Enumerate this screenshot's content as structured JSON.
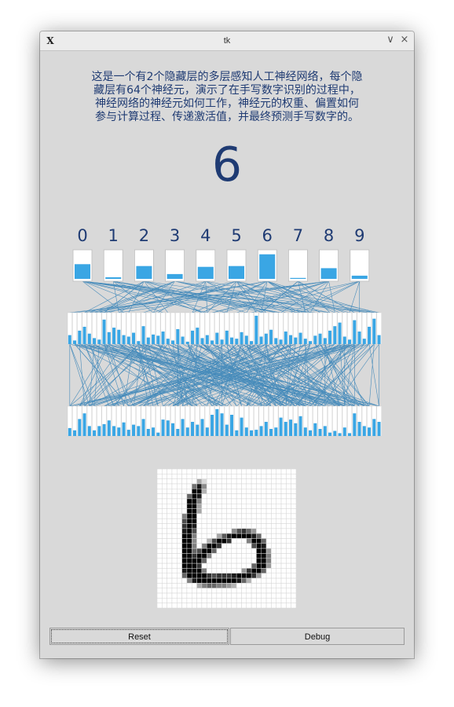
{
  "window": {
    "title": "tk",
    "app_icon": "X",
    "minimize_glyph": "∨",
    "close_glyph": "×"
  },
  "description": "这是一个有2个隐藏层的多层感知人工神经网络，每个隐\n藏层有64个神经元，演示了在手写数字识别的过程中，\n神经网络的神经元如何工作，神经元的权重、偏置如何\n参与计算过程、传递激活值，并最终预测手写数字的。",
  "prediction": "6",
  "output_layer": {
    "labels": [
      "0",
      "1",
      "2",
      "3",
      "4",
      "5",
      "6",
      "7",
      "8",
      "9"
    ],
    "activations": [
      0.55,
      0.06,
      0.48,
      0.18,
      0.45,
      0.48,
      0.92,
      0.03,
      0.4,
      0.12
    ]
  },
  "hidden_layer_2": {
    "activations": [
      0.3,
      0.12,
      0.45,
      0.58,
      0.35,
      0.2,
      0.15,
      0.82,
      0.4,
      0.55,
      0.48,
      0.3,
      0.25,
      0.38,
      0.1,
      0.6,
      0.22,
      0.32,
      0.28,
      0.42,
      0.18,
      0.12,
      0.5,
      0.25,
      0.08,
      0.45,
      0.55,
      0.2,
      0.3,
      0.12,
      0.38,
      0.15,
      0.45,
      0.22,
      0.18,
      0.4,
      0.28,
      0.1,
      0.95,
      0.25,
      0.35,
      0.48,
      0.2,
      0.15,
      0.42,
      0.3,
      0.22,
      0.38,
      0.18,
      0.1,
      0.28,
      0.35,
      0.2,
      0.45,
      0.6,
      0.72,
      0.25,
      0.15,
      0.8,
      0.42,
      0.18,
      0.58,
      0.85,
      0.3
    ]
  },
  "hidden_layer_1": {
    "activations": [
      0.28,
      0.2,
      0.6,
      0.8,
      0.35,
      0.2,
      0.35,
      0.42,
      0.55,
      0.35,
      0.3,
      0.48,
      0.22,
      0.4,
      0.35,
      0.6,
      0.25,
      0.3,
      0.12,
      0.58,
      0.55,
      0.45,
      0.25,
      0.6,
      0.3,
      0.5,
      0.4,
      0.6,
      0.3,
      0.75,
      0.95,
      0.8,
      0.4,
      0.75,
      0.2,
      0.65,
      0.3,
      0.2,
      0.22,
      0.35,
      0.5,
      0.25,
      0.3,
      0.65,
      0.5,
      0.58,
      0.45,
      0.7,
      0.3,
      0.2,
      0.45,
      0.25,
      0.35,
      0.12,
      0.18,
      0.1,
      0.3,
      0.1,
      0.8,
      0.5,
      0.35,
      0.3,
      0.6,
      0.5
    ]
  },
  "input_image": {
    "size": 28,
    "strokes": [
      {
        "r": 2,
        "c": 8,
        "v": 0.35
      },
      {
        "r": 2,
        "c": 9,
        "v": 0.15
      },
      {
        "r": 3,
        "c": 7,
        "v": 0.55
      },
      {
        "r": 3,
        "c": 8,
        "v": 0.9
      },
      {
        "r": 3,
        "c": 9,
        "v": 0.45
      },
      {
        "r": 4,
        "c": 7,
        "v": 1
      },
      {
        "r": 4,
        "c": 8,
        "v": 1
      },
      {
        "r": 4,
        "c": 9,
        "v": 0.3
      },
      {
        "r": 5,
        "c": 6,
        "v": 0.6
      },
      {
        "r": 5,
        "c": 7,
        "v": 1
      },
      {
        "r": 5,
        "c": 8,
        "v": 0.9
      },
      {
        "r": 6,
        "c": 6,
        "v": 1
      },
      {
        "r": 6,
        "c": 7,
        "v": 1
      },
      {
        "r": 6,
        "c": 8,
        "v": 0.5
      },
      {
        "r": 7,
        "c": 6,
        "v": 1
      },
      {
        "r": 7,
        "c": 7,
        "v": 1
      },
      {
        "r": 7,
        "c": 8,
        "v": 0.35
      },
      {
        "r": 8,
        "c": 6,
        "v": 1
      },
      {
        "r": 8,
        "c": 7,
        "v": 1
      },
      {
        "r": 8,
        "c": 8,
        "v": 0.35
      },
      {
        "r": 9,
        "c": 5,
        "v": 0.5
      },
      {
        "r": 9,
        "c": 6,
        "v": 1
      },
      {
        "r": 9,
        "c": 7,
        "v": 1
      },
      {
        "r": 10,
        "c": 5,
        "v": 0.7
      },
      {
        "r": 10,
        "c": 6,
        "v": 1
      },
      {
        "r": 10,
        "c": 7,
        "v": 1
      },
      {
        "r": 11,
        "c": 5,
        "v": 0.8
      },
      {
        "r": 11,
        "c": 6,
        "v": 1
      },
      {
        "r": 11,
        "c": 7,
        "v": 0.9
      },
      {
        "r": 12,
        "c": 5,
        "v": 0.9
      },
      {
        "r": 12,
        "c": 6,
        "v": 1
      },
      {
        "r": 12,
        "c": 7,
        "v": 0.7
      },
      {
        "r": 13,
        "c": 5,
        "v": 1
      },
      {
        "r": 13,
        "c": 6,
        "v": 1
      },
      {
        "r": 13,
        "c": 7,
        "v": 0.5
      },
      {
        "r": 12,
        "c": 15,
        "v": 0.45
      },
      {
        "r": 12,
        "c": 16,
        "v": 0.7
      },
      {
        "r": 12,
        "c": 17,
        "v": 0.8
      },
      {
        "r": 12,
        "c": 18,
        "v": 0.6
      },
      {
        "r": 12,
        "c": 19,
        "v": 0.4
      },
      {
        "r": 13,
        "c": 12,
        "v": 0.35
      },
      {
        "r": 13,
        "c": 13,
        "v": 0.65
      },
      {
        "r": 13,
        "c": 14,
        "v": 0.9
      },
      {
        "r": 13,
        "c": 15,
        "v": 1
      },
      {
        "r": 13,
        "c": 16,
        "v": 1
      },
      {
        "r": 13,
        "c": 17,
        "v": 1
      },
      {
        "r": 13,
        "c": 18,
        "v": 1
      },
      {
        "r": 13,
        "c": 19,
        "v": 0.9
      },
      {
        "r": 13,
        "c": 20,
        "v": 0.6
      },
      {
        "r": 14,
        "c": 5,
        "v": 1
      },
      {
        "r": 14,
        "c": 6,
        "v": 1
      },
      {
        "r": 14,
        "c": 7,
        "v": 0.45
      },
      {
        "r": 14,
        "c": 10,
        "v": 0.3
      },
      {
        "r": 14,
        "c": 11,
        "v": 0.7
      },
      {
        "r": 14,
        "c": 12,
        "v": 1
      },
      {
        "r": 14,
        "c": 13,
        "v": 1
      },
      {
        "r": 14,
        "c": 14,
        "v": 0.8
      },
      {
        "r": 14,
        "c": 18,
        "v": 0.5
      },
      {
        "r": 14,
        "c": 19,
        "v": 1
      },
      {
        "r": 14,
        "c": 20,
        "v": 1
      },
      {
        "r": 14,
        "c": 21,
        "v": 0.6
      },
      {
        "r": 15,
        "c": 5,
        "v": 1
      },
      {
        "r": 15,
        "c": 6,
        "v": 1
      },
      {
        "r": 15,
        "c": 7,
        "v": 0.5
      },
      {
        "r": 15,
        "c": 9,
        "v": 0.5
      },
      {
        "r": 15,
        "c": 10,
        "v": 1
      },
      {
        "r": 15,
        "c": 11,
        "v": 1
      },
      {
        "r": 15,
        "c": 12,
        "v": 0.8
      },
      {
        "r": 15,
        "c": 19,
        "v": 0.7
      },
      {
        "r": 15,
        "c": 20,
        "v": 1
      },
      {
        "r": 15,
        "c": 21,
        "v": 0.9
      },
      {
        "r": 16,
        "c": 5,
        "v": 1
      },
      {
        "r": 16,
        "c": 6,
        "v": 1
      },
      {
        "r": 16,
        "c": 7,
        "v": 0.6
      },
      {
        "r": 16,
        "c": 8,
        "v": 0.7
      },
      {
        "r": 16,
        "c": 9,
        "v": 1
      },
      {
        "r": 16,
        "c": 10,
        "v": 1
      },
      {
        "r": 16,
        "c": 11,
        "v": 0.6
      },
      {
        "r": 16,
        "c": 20,
        "v": 1
      },
      {
        "r": 16,
        "c": 21,
        "v": 1
      },
      {
        "r": 16,
        "c": 22,
        "v": 0.4
      },
      {
        "r": 17,
        "c": 5,
        "v": 1
      },
      {
        "r": 17,
        "c": 6,
        "v": 1
      },
      {
        "r": 17,
        "c": 7,
        "v": 0.8
      },
      {
        "r": 17,
        "c": 8,
        "v": 1
      },
      {
        "r": 17,
        "c": 9,
        "v": 1
      },
      {
        "r": 17,
        "c": 10,
        "v": 0.5
      },
      {
        "r": 17,
        "c": 20,
        "v": 1
      },
      {
        "r": 17,
        "c": 21,
        "v": 1
      },
      {
        "r": 17,
        "c": 22,
        "v": 0.5
      },
      {
        "r": 18,
        "c": 5,
        "v": 1
      },
      {
        "r": 18,
        "c": 6,
        "v": 1
      },
      {
        "r": 18,
        "c": 7,
        "v": 1
      },
      {
        "r": 18,
        "c": 8,
        "v": 1
      },
      {
        "r": 18,
        "c": 9,
        "v": 0.6
      },
      {
        "r": 18,
        "c": 20,
        "v": 1
      },
      {
        "r": 18,
        "c": 21,
        "v": 1
      },
      {
        "r": 18,
        "c": 22,
        "v": 0.5
      },
      {
        "r": 19,
        "c": 5,
        "v": 1
      },
      {
        "r": 19,
        "c": 6,
        "v": 1
      },
      {
        "r": 19,
        "c": 7,
        "v": 1
      },
      {
        "r": 19,
        "c": 8,
        "v": 0.8
      },
      {
        "r": 19,
        "c": 19,
        "v": 0.6
      },
      {
        "r": 19,
        "c": 20,
        "v": 1
      },
      {
        "r": 19,
        "c": 21,
        "v": 1
      },
      {
        "r": 19,
        "c": 22,
        "v": 0.4
      },
      {
        "r": 20,
        "c": 5,
        "v": 0.9
      },
      {
        "r": 20,
        "c": 6,
        "v": 1
      },
      {
        "r": 20,
        "c": 7,
        "v": 1
      },
      {
        "r": 20,
        "c": 8,
        "v": 1
      },
      {
        "r": 20,
        "c": 9,
        "v": 0.5
      },
      {
        "r": 20,
        "c": 17,
        "v": 0.4
      },
      {
        "r": 20,
        "c": 18,
        "v": 0.8
      },
      {
        "r": 20,
        "c": 19,
        "v": 1
      },
      {
        "r": 20,
        "c": 20,
        "v": 1
      },
      {
        "r": 20,
        "c": 21,
        "v": 0.6
      },
      {
        "r": 21,
        "c": 5,
        "v": 0.6
      },
      {
        "r": 21,
        "c": 6,
        "v": 1
      },
      {
        "r": 21,
        "c": 7,
        "v": 1
      },
      {
        "r": 21,
        "c": 8,
        "v": 1
      },
      {
        "r": 21,
        "c": 9,
        "v": 1
      },
      {
        "r": 21,
        "c": 10,
        "v": 0.8
      },
      {
        "r": 21,
        "c": 11,
        "v": 0.7
      },
      {
        "r": 21,
        "c": 12,
        "v": 0.8
      },
      {
        "r": 21,
        "c": 13,
        "v": 0.8
      },
      {
        "r": 21,
        "c": 14,
        "v": 0.8
      },
      {
        "r": 21,
        "c": 15,
        "v": 0.9
      },
      {
        "r": 21,
        "c": 16,
        "v": 1
      },
      {
        "r": 21,
        "c": 17,
        "v": 1
      },
      {
        "r": 21,
        "c": 18,
        "v": 1
      },
      {
        "r": 21,
        "c": 19,
        "v": 0.8
      },
      {
        "r": 21,
        "c": 20,
        "v": 0.4
      },
      {
        "r": 22,
        "c": 6,
        "v": 0.5
      },
      {
        "r": 22,
        "c": 7,
        "v": 0.9
      },
      {
        "r": 22,
        "c": 8,
        "v": 1
      },
      {
        "r": 22,
        "c": 9,
        "v": 1
      },
      {
        "r": 22,
        "c": 10,
        "v": 1
      },
      {
        "r": 22,
        "c": 11,
        "v": 1
      },
      {
        "r": 22,
        "c": 12,
        "v": 1
      },
      {
        "r": 22,
        "c": 13,
        "v": 1
      },
      {
        "r": 22,
        "c": 14,
        "v": 1
      },
      {
        "r": 22,
        "c": 15,
        "v": 1
      },
      {
        "r": 22,
        "c": 16,
        "v": 0.9
      },
      {
        "r": 22,
        "c": 17,
        "v": 0.6
      },
      {
        "r": 22,
        "c": 18,
        "v": 0.3
      },
      {
        "r": 23,
        "c": 8,
        "v": 0.35
      },
      {
        "r": 23,
        "c": 9,
        "v": 0.5
      },
      {
        "r": 23,
        "c": 10,
        "v": 0.6
      },
      {
        "r": 23,
        "c": 11,
        "v": 0.6
      },
      {
        "r": 23,
        "c": 12,
        "v": 0.5
      },
      {
        "r": 23,
        "c": 13,
        "v": 0.5
      },
      {
        "r": 23,
        "c": 14,
        "v": 0.4
      },
      {
        "r": 23,
        "c": 15,
        "v": 0.3
      }
    ]
  },
  "buttons": {
    "reset": "Reset",
    "debug": "Debug"
  },
  "colors": {
    "text": "#1f3b73",
    "bar": "#3aa6e4",
    "connection": "#2f7fb6",
    "background": "#d9d9d9"
  }
}
